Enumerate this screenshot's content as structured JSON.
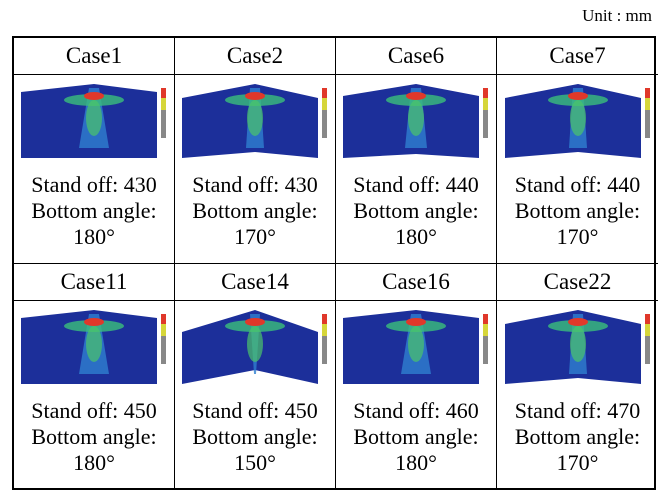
{
  "unit": "Unit : mm",
  "cases": [
    {
      "title": "Case1",
      "lines": [
        "Stand off: 430",
        "Bottom angle:",
        "180°"
      ]
    },
    {
      "title": "Case2",
      "lines": [
        "Stand off: 430",
        "Bottom angle:",
        "170°"
      ]
    },
    {
      "title": "Case6",
      "lines": [
        "Stand off: 440",
        "Bottom angle:",
        "180°"
      ]
    },
    {
      "title": "Case7",
      "lines": [
        "Stand off: 440",
        "Bottom angle:",
        "170°"
      ]
    },
    {
      "title": "Case11",
      "lines": [
        "Stand off: 450",
        "Bottom angle:",
        "180°"
      ]
    },
    {
      "title": "Case14",
      "lines": [
        "Stand off: 450",
        "Bottom angle:",
        "150°"
      ]
    },
    {
      "title": "Case16",
      "lines": [
        "Stand off: 460",
        "Bottom angle:",
        "180°"
      ]
    },
    {
      "title": "Case22",
      "lines": [
        "Stand off: 470",
        "Bottom angle:",
        "170°"
      ]
    }
  ]
}
